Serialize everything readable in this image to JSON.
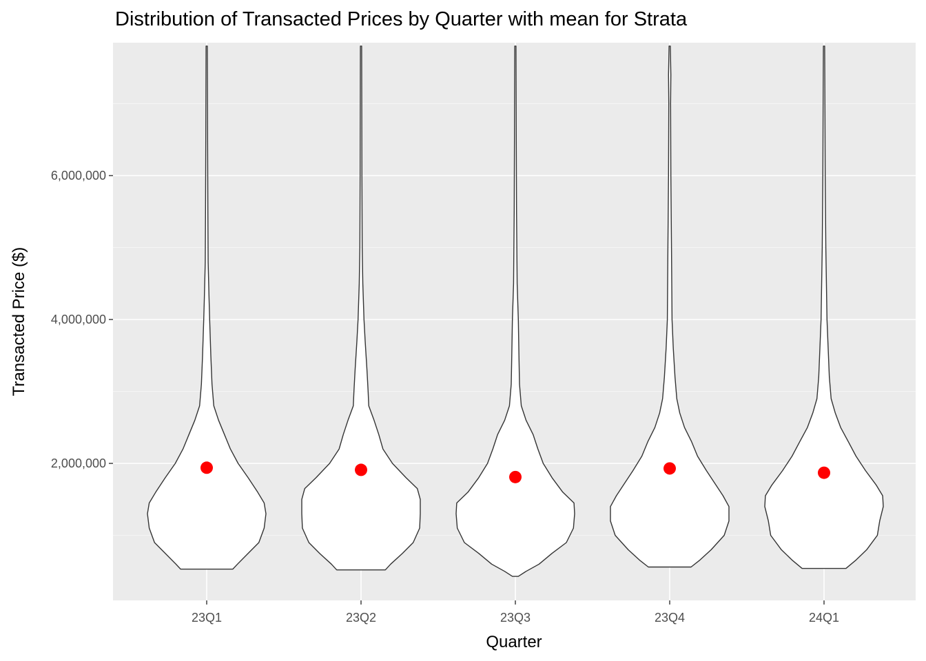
{
  "chart_data": {
    "type": "violin",
    "title": "Distribution of Transacted Prices by Quarter with mean for Strata",
    "xlabel": "Quarter",
    "ylabel": "Transacted Price ($)",
    "categories": [
      "23Q1",
      "23Q2",
      "23Q3",
      "23Q4",
      "24Q1"
    ],
    "ylim": [
      0,
      7800000
    ],
    "y_ticks": [
      2000000,
      4000000,
      6000000
    ],
    "y_tick_labels": [
      "2,000,000",
      "4,000,000",
      "6,000,000"
    ],
    "grid": true,
    "mean_color": "#ff0000",
    "mean_label": "mean",
    "means": [
      1940000,
      1910000,
      1810000,
      1930000,
      1870000
    ],
    "mins": [
      530000,
      520000,
      430000,
      560000,
      540000
    ],
    "max": 7800000,
    "violin_profiles": [
      [
        [
          530000,
          0.44
        ],
        [
          600000,
          0.52
        ],
        [
          750000,
          0.7
        ],
        [
          900000,
          0.88
        ],
        [
          1100000,
          0.97
        ],
        [
          1300000,
          1.0
        ],
        [
          1450000,
          0.97
        ],
        [
          1600000,
          0.86
        ],
        [
          1800000,
          0.7
        ],
        [
          2000000,
          0.53
        ],
        [
          2200000,
          0.4
        ],
        [
          2400000,
          0.3
        ],
        [
          2600000,
          0.2
        ],
        [
          2800000,
          0.12
        ],
        [
          3100000,
          0.09
        ],
        [
          3500000,
          0.07
        ],
        [
          4000000,
          0.05
        ],
        [
          4300000,
          0.04
        ],
        [
          4800000,
          0.025
        ],
        [
          5500000,
          0.02
        ],
        [
          6500000,
          0.015
        ],
        [
          7800000,
          0.01
        ]
      ],
      [
        [
          520000,
          0.41
        ],
        [
          600000,
          0.5
        ],
        [
          750000,
          0.7
        ],
        [
          900000,
          0.88
        ],
        [
          1100000,
          0.99
        ],
        [
          1300000,
          1.0
        ],
        [
          1500000,
          1.0
        ],
        [
          1650000,
          0.95
        ],
        [
          1800000,
          0.76
        ],
        [
          2000000,
          0.53
        ],
        [
          2200000,
          0.37
        ],
        [
          2400000,
          0.3
        ],
        [
          2600000,
          0.22
        ],
        [
          2800000,
          0.13
        ],
        [
          3000000,
          0.12
        ],
        [
          3300000,
          0.1
        ],
        [
          3700000,
          0.07
        ],
        [
          4000000,
          0.05
        ],
        [
          4500000,
          0.03
        ],
        [
          5000000,
          0.02
        ],
        [
          6000000,
          0.015
        ],
        [
          7800000,
          0.01
        ]
      ],
      [
        [
          430000,
          0.05
        ],
        [
          500000,
          0.18
        ],
        [
          600000,
          0.4
        ],
        [
          750000,
          0.62
        ],
        [
          900000,
          0.86
        ],
        [
          1100000,
          0.98
        ],
        [
          1300000,
          1.0
        ],
        [
          1450000,
          0.99
        ],
        [
          1600000,
          0.8
        ],
        [
          1800000,
          0.62
        ],
        [
          2000000,
          0.47
        ],
        [
          2200000,
          0.38
        ],
        [
          2400000,
          0.3
        ],
        [
          2600000,
          0.18
        ],
        [
          2800000,
          0.1
        ],
        [
          3100000,
          0.07
        ],
        [
          3500000,
          0.06
        ],
        [
          4000000,
          0.05
        ],
        [
          4500000,
          0.03
        ],
        [
          5500000,
          0.02
        ],
        [
          6500000,
          0.015
        ],
        [
          7800000,
          0.01
        ]
      ],
      [
        [
          560000,
          0.36
        ],
        [
          650000,
          0.5
        ],
        [
          800000,
          0.7
        ],
        [
          1000000,
          0.92
        ],
        [
          1200000,
          1.0
        ],
        [
          1400000,
          1.0
        ],
        [
          1550000,
          0.9
        ],
        [
          1700000,
          0.78
        ],
        [
          1900000,
          0.62
        ],
        [
          2100000,
          0.47
        ],
        [
          2300000,
          0.37
        ],
        [
          2500000,
          0.25
        ],
        [
          2700000,
          0.17
        ],
        [
          2900000,
          0.12
        ],
        [
          3200000,
          0.09
        ],
        [
          3600000,
          0.06
        ],
        [
          4000000,
          0.04
        ],
        [
          5000000,
          0.03
        ],
        [
          6000000,
          0.02
        ],
        [
          7000000,
          0.015
        ],
        [
          7400000,
          0.02
        ],
        [
          7800000,
          0.01
        ]
      ],
      [
        [
          540000,
          0.37
        ],
        [
          650000,
          0.53
        ],
        [
          800000,
          0.72
        ],
        [
          1000000,
          0.9
        ],
        [
          1200000,
          0.94
        ],
        [
          1400000,
          1.0
        ],
        [
          1550000,
          0.99
        ],
        [
          1700000,
          0.88
        ],
        [
          1900000,
          0.7
        ],
        [
          2100000,
          0.54
        ],
        [
          2300000,
          0.41
        ],
        [
          2500000,
          0.28
        ],
        [
          2700000,
          0.19
        ],
        [
          2900000,
          0.12
        ],
        [
          3200000,
          0.09
        ],
        [
          3600000,
          0.07
        ],
        [
          4000000,
          0.05
        ],
        [
          5000000,
          0.03
        ],
        [
          6000000,
          0.02
        ],
        [
          7000000,
          0.015
        ],
        [
          7800000,
          0.01
        ]
      ]
    ]
  }
}
